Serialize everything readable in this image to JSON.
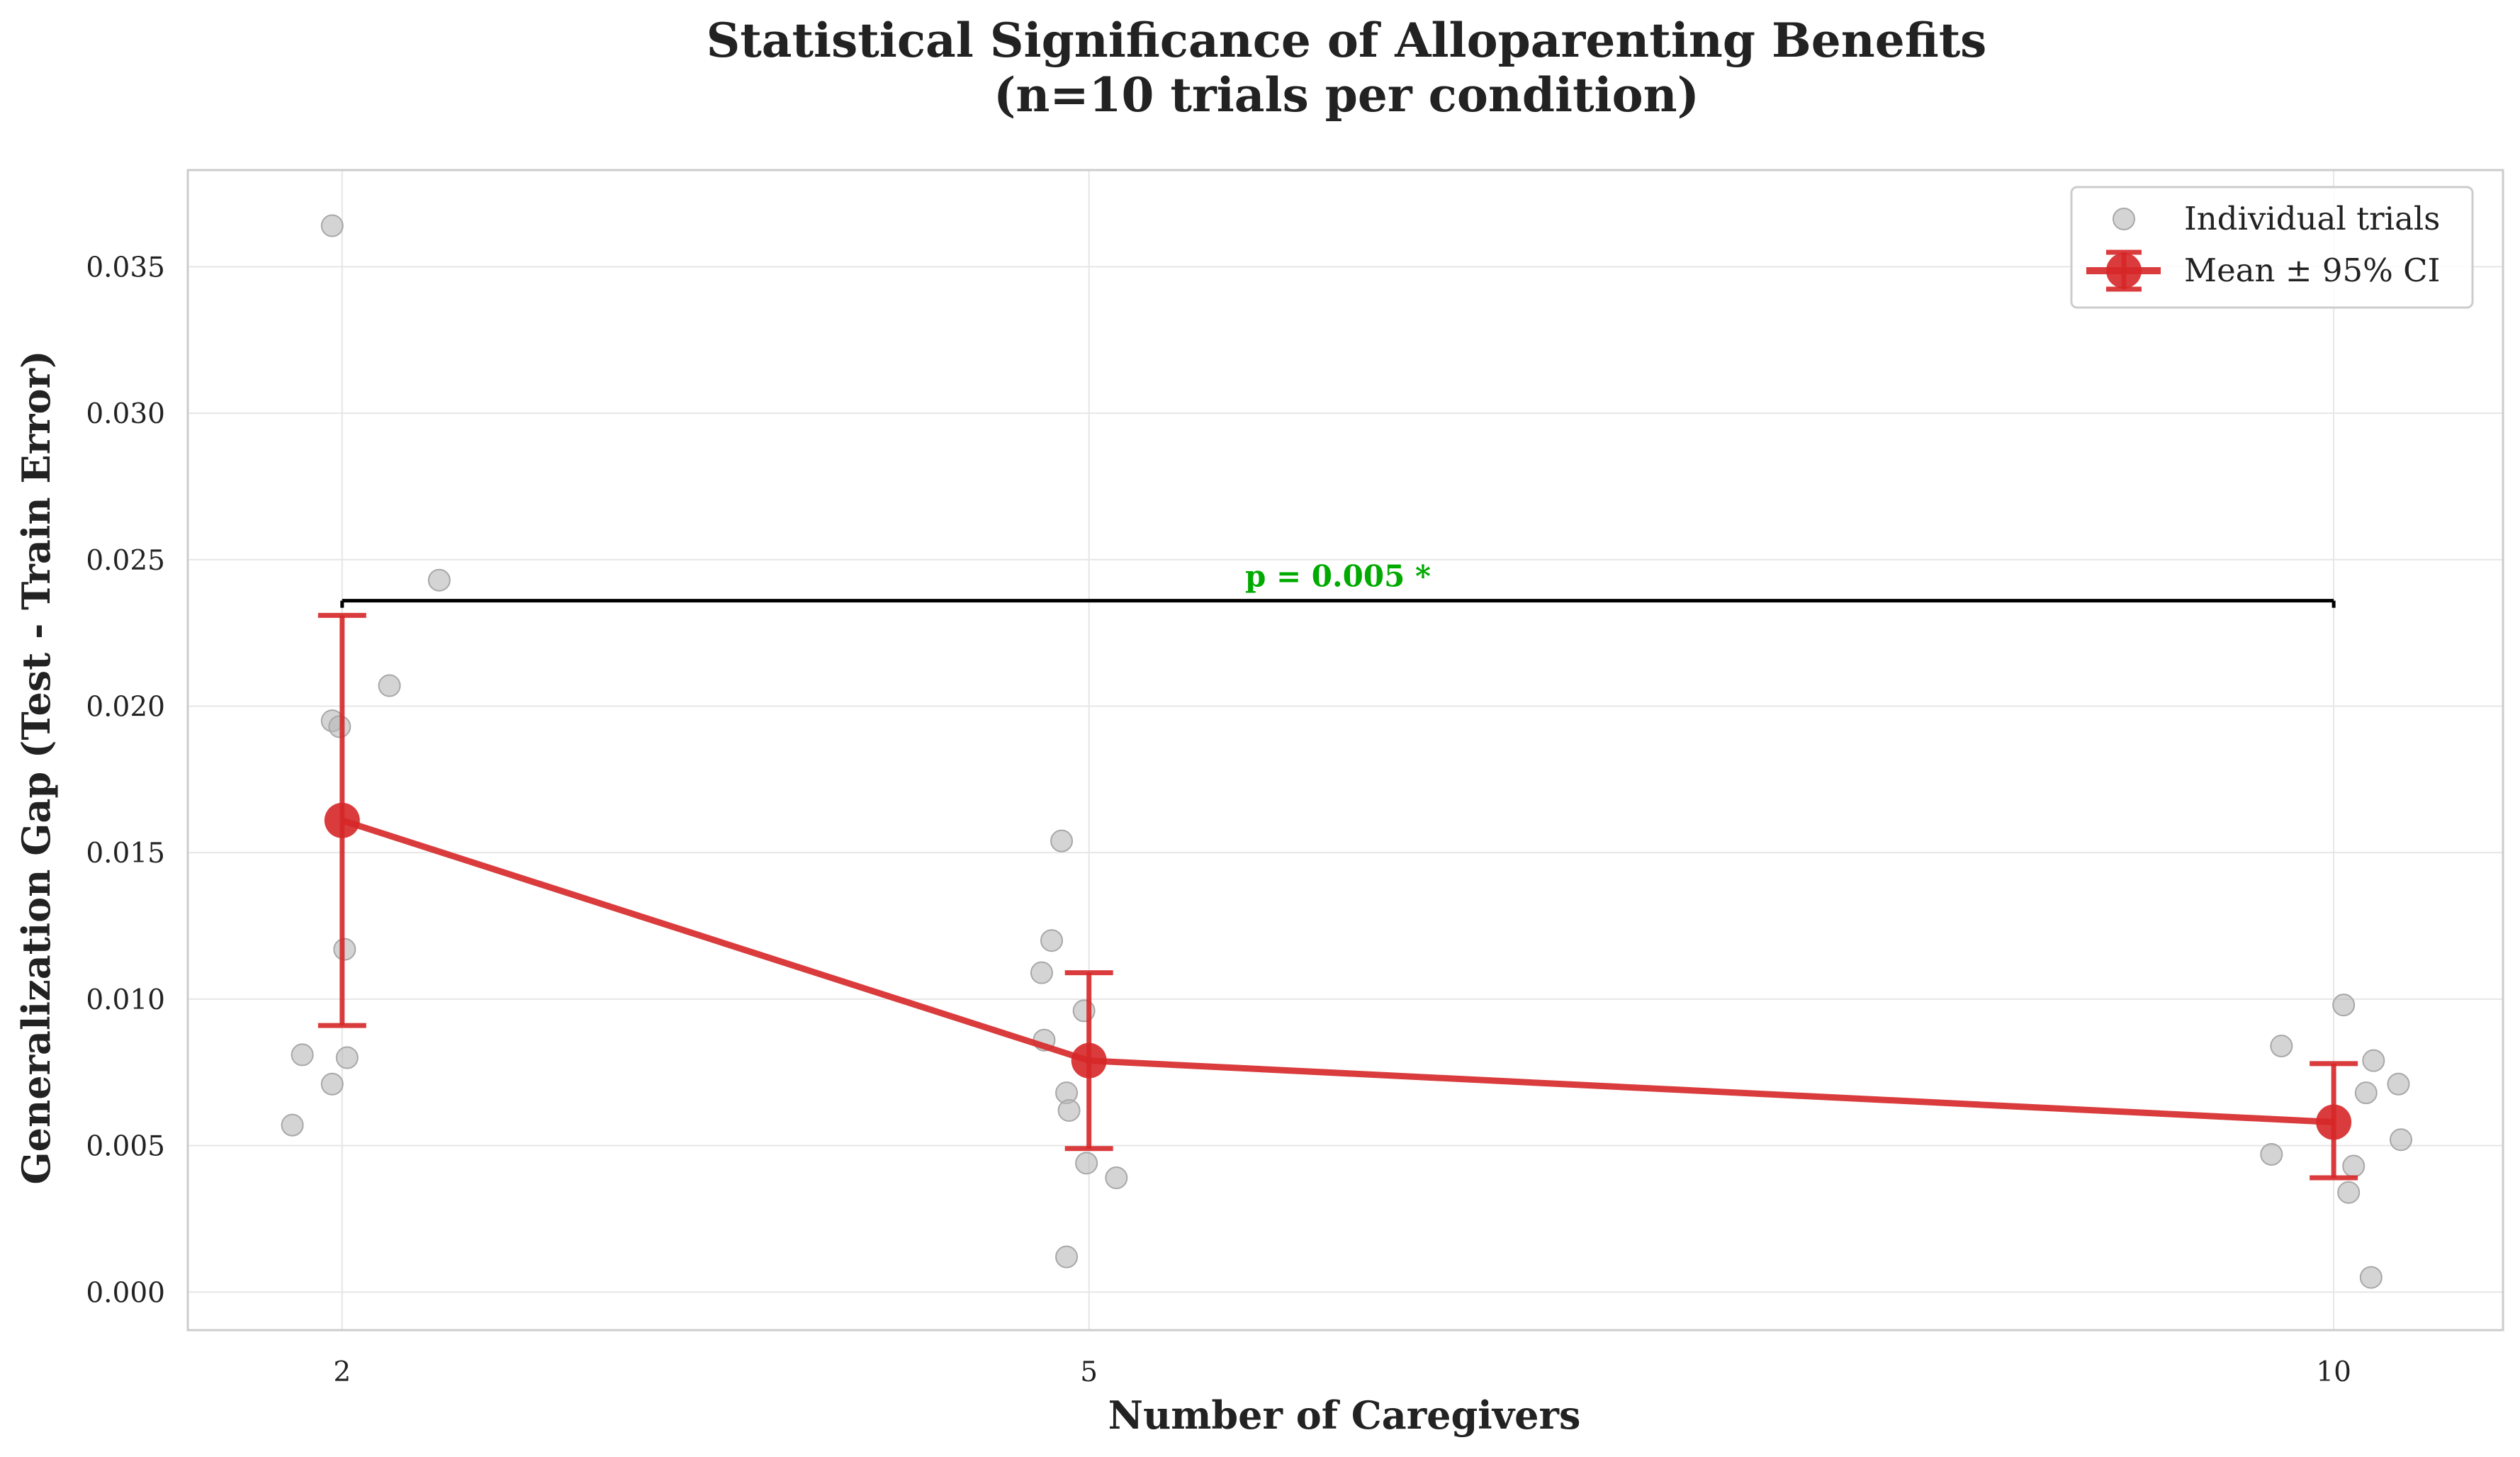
{
  "chart_data": {
    "type": "scatter",
    "title_lines": [
      "Statistical Significance of Alloparenting Benefits",
      "(n=10 trials per condition)"
    ],
    "xlabel": "Number of Caregivers",
    "ylabel": "Generalization Gap (Test - Train Error)",
    "x_ticks": [
      2,
      5,
      10
    ],
    "y_ticks": [
      0.0,
      0.005,
      0.01,
      0.015,
      0.02,
      0.025,
      0.03,
      0.035
    ],
    "y_tick_labels": [
      "0.000",
      "0.005",
      "0.010",
      "0.015",
      "0.020",
      "0.025",
      "0.030",
      "0.035"
    ],
    "x_tick_labels": [
      "2",
      "5",
      "10"
    ],
    "xlim": [
      1.38,
      10.68
    ],
    "ylim": [
      -0.0013,
      0.0383
    ],
    "grid": true,
    "legend_position": "top-right",
    "series": [
      {
        "name": "Individual trials",
        "kind": "scatter",
        "color": "#b8b8b8",
        "points": [
          {
            "x": 1.8,
            "y": 0.0057
          },
          {
            "x": 1.84,
            "y": 0.0081
          },
          {
            "x": 1.96,
            "y": 0.0364
          },
          {
            "x": 1.96,
            "y": 0.0195
          },
          {
            "x": 1.96,
            "y": 0.0071
          },
          {
            "x": 1.99,
            "y": 0.0193
          },
          {
            "x": 2.01,
            "y": 0.0117
          },
          {
            "x": 2.02,
            "y": 0.008
          },
          {
            "x": 2.19,
            "y": 0.0207
          },
          {
            "x": 2.39,
            "y": 0.0243
          },
          {
            "x": 4.81,
            "y": 0.0109
          },
          {
            "x": 4.82,
            "y": 0.0086
          },
          {
            "x": 4.85,
            "y": 0.012
          },
          {
            "x": 4.89,
            "y": 0.0154
          },
          {
            "x": 4.91,
            "y": 0.0068
          },
          {
            "x": 4.92,
            "y": 0.0062
          },
          {
            "x": 4.91,
            "y": 0.0012
          },
          {
            "x": 4.99,
            "y": 0.0044
          },
          {
            "x": 4.98,
            "y": 0.0096
          },
          {
            "x": 5.11,
            "y": 0.0039
          },
          {
            "x": 9.75,
            "y": 0.0047
          },
          {
            "x": 9.79,
            "y": 0.0084
          },
          {
            "x": 10.04,
            "y": 0.0098
          },
          {
            "x": 10.06,
            "y": 0.0034
          },
          {
            "x": 10.08,
            "y": 0.0043
          },
          {
            "x": 10.13,
            "y": 0.0068
          },
          {
            "x": 10.15,
            "y": 0.0005
          },
          {
            "x": 10.16,
            "y": 0.0079
          },
          {
            "x": 10.26,
            "y": 0.0071
          },
          {
            "x": 10.27,
            "y": 0.0052
          }
        ]
      },
      {
        "name": "Mean ± 95% CI",
        "kind": "errorbar-line",
        "color": "#d62728",
        "x": [
          2,
          5,
          10
        ],
        "y": [
          0.0161,
          0.0079,
          0.0058
        ],
        "ci_low": [
          0.0091,
          0.0049,
          0.0039
        ],
        "ci_high": [
          0.0231,
          0.0109,
          0.0078
        ]
      }
    ],
    "annotation": {
      "text": "p = 0.005 *",
      "x_from": 2,
      "x_to": 10,
      "y": 0.0236,
      "color": "#00aa00"
    }
  }
}
